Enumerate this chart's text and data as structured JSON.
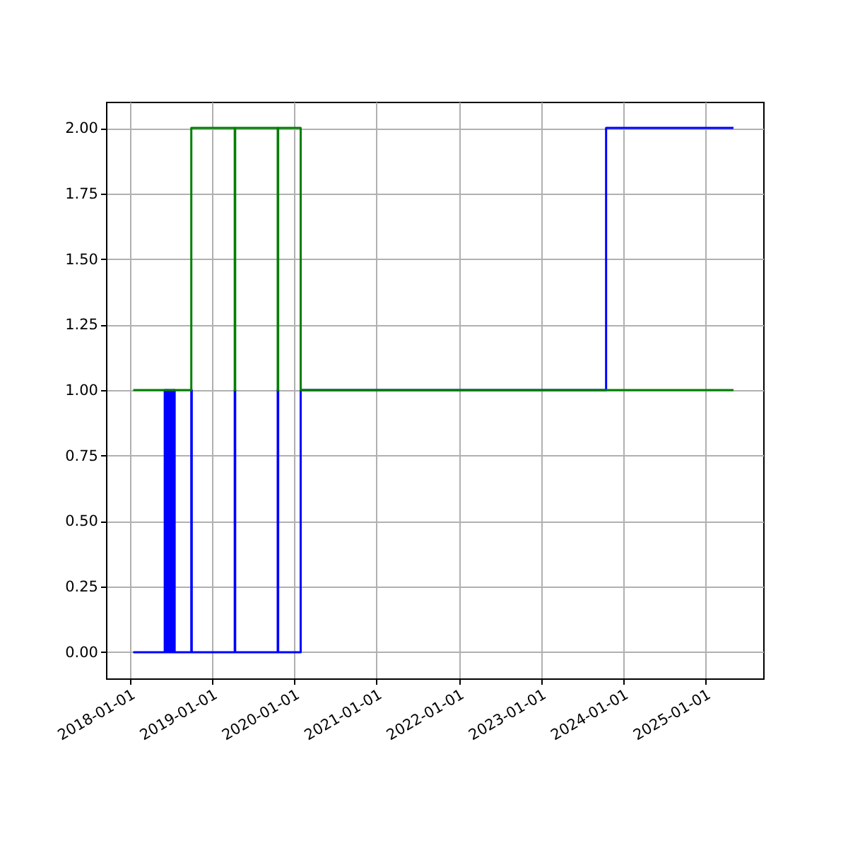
{
  "chart_data": {
    "type": "step",
    "xlim": [
      "2017-09-17",
      "2025-09-15"
    ],
    "ylim": [
      -0.1,
      2.1
    ],
    "xticks": [
      "2018-01-01",
      "2019-01-01",
      "2020-01-01",
      "2021-01-01",
      "2022-01-01",
      "2023-01-01",
      "2024-01-01",
      "2025-01-01"
    ],
    "yticks": [
      {
        "value": 0,
        "label": "0.00"
      },
      {
        "value": 0.25,
        "label": "0.25"
      },
      {
        "value": 0.5,
        "label": "0.50"
      },
      {
        "value": 0.75,
        "label": "0.75"
      },
      {
        "value": 1,
        "label": "1.00"
      },
      {
        "value": 1.25,
        "label": "1.25"
      },
      {
        "value": 1.5,
        "label": "1.50"
      },
      {
        "value": 1.75,
        "label": "1.75"
      },
      {
        "value": 2,
        "label": "2.00"
      }
    ],
    "grid": true,
    "series": [
      {
        "color": "#0000ff",
        "x": [
          "2018-01-16",
          "2018-06-05",
          "2018-06-07",
          "2018-06-12",
          "2018-06-14",
          "2018-06-19",
          "2018-06-21",
          "2018-06-27",
          "2018-06-29",
          "2018-07-05",
          "2018-07-07",
          "2018-07-13",
          "2018-07-19",
          "2018-10-01",
          "2018-10-03",
          "2019-04-12",
          "2019-04-14",
          "2019-10-20",
          "2019-10-22",
          "2020-01-30",
          "2023-10-18",
          "2025-05-06"
        ],
        "values": [
          0,
          1,
          0,
          1,
          0,
          1,
          0,
          1,
          0,
          1,
          0,
          1,
          0,
          1,
          0,
          1,
          0,
          1,
          0,
          1,
          2,
          2
        ]
      },
      {
        "color": "#008000",
        "x": [
          "2018-01-16",
          "2018-10-01",
          "2019-04-12",
          "2019-04-14",
          "2019-10-20",
          "2019-10-22",
          "2020-01-30",
          "2025-05-06"
        ],
        "values": [
          1,
          2,
          1,
          2,
          1,
          2,
          1,
          1
        ]
      }
    ]
  }
}
